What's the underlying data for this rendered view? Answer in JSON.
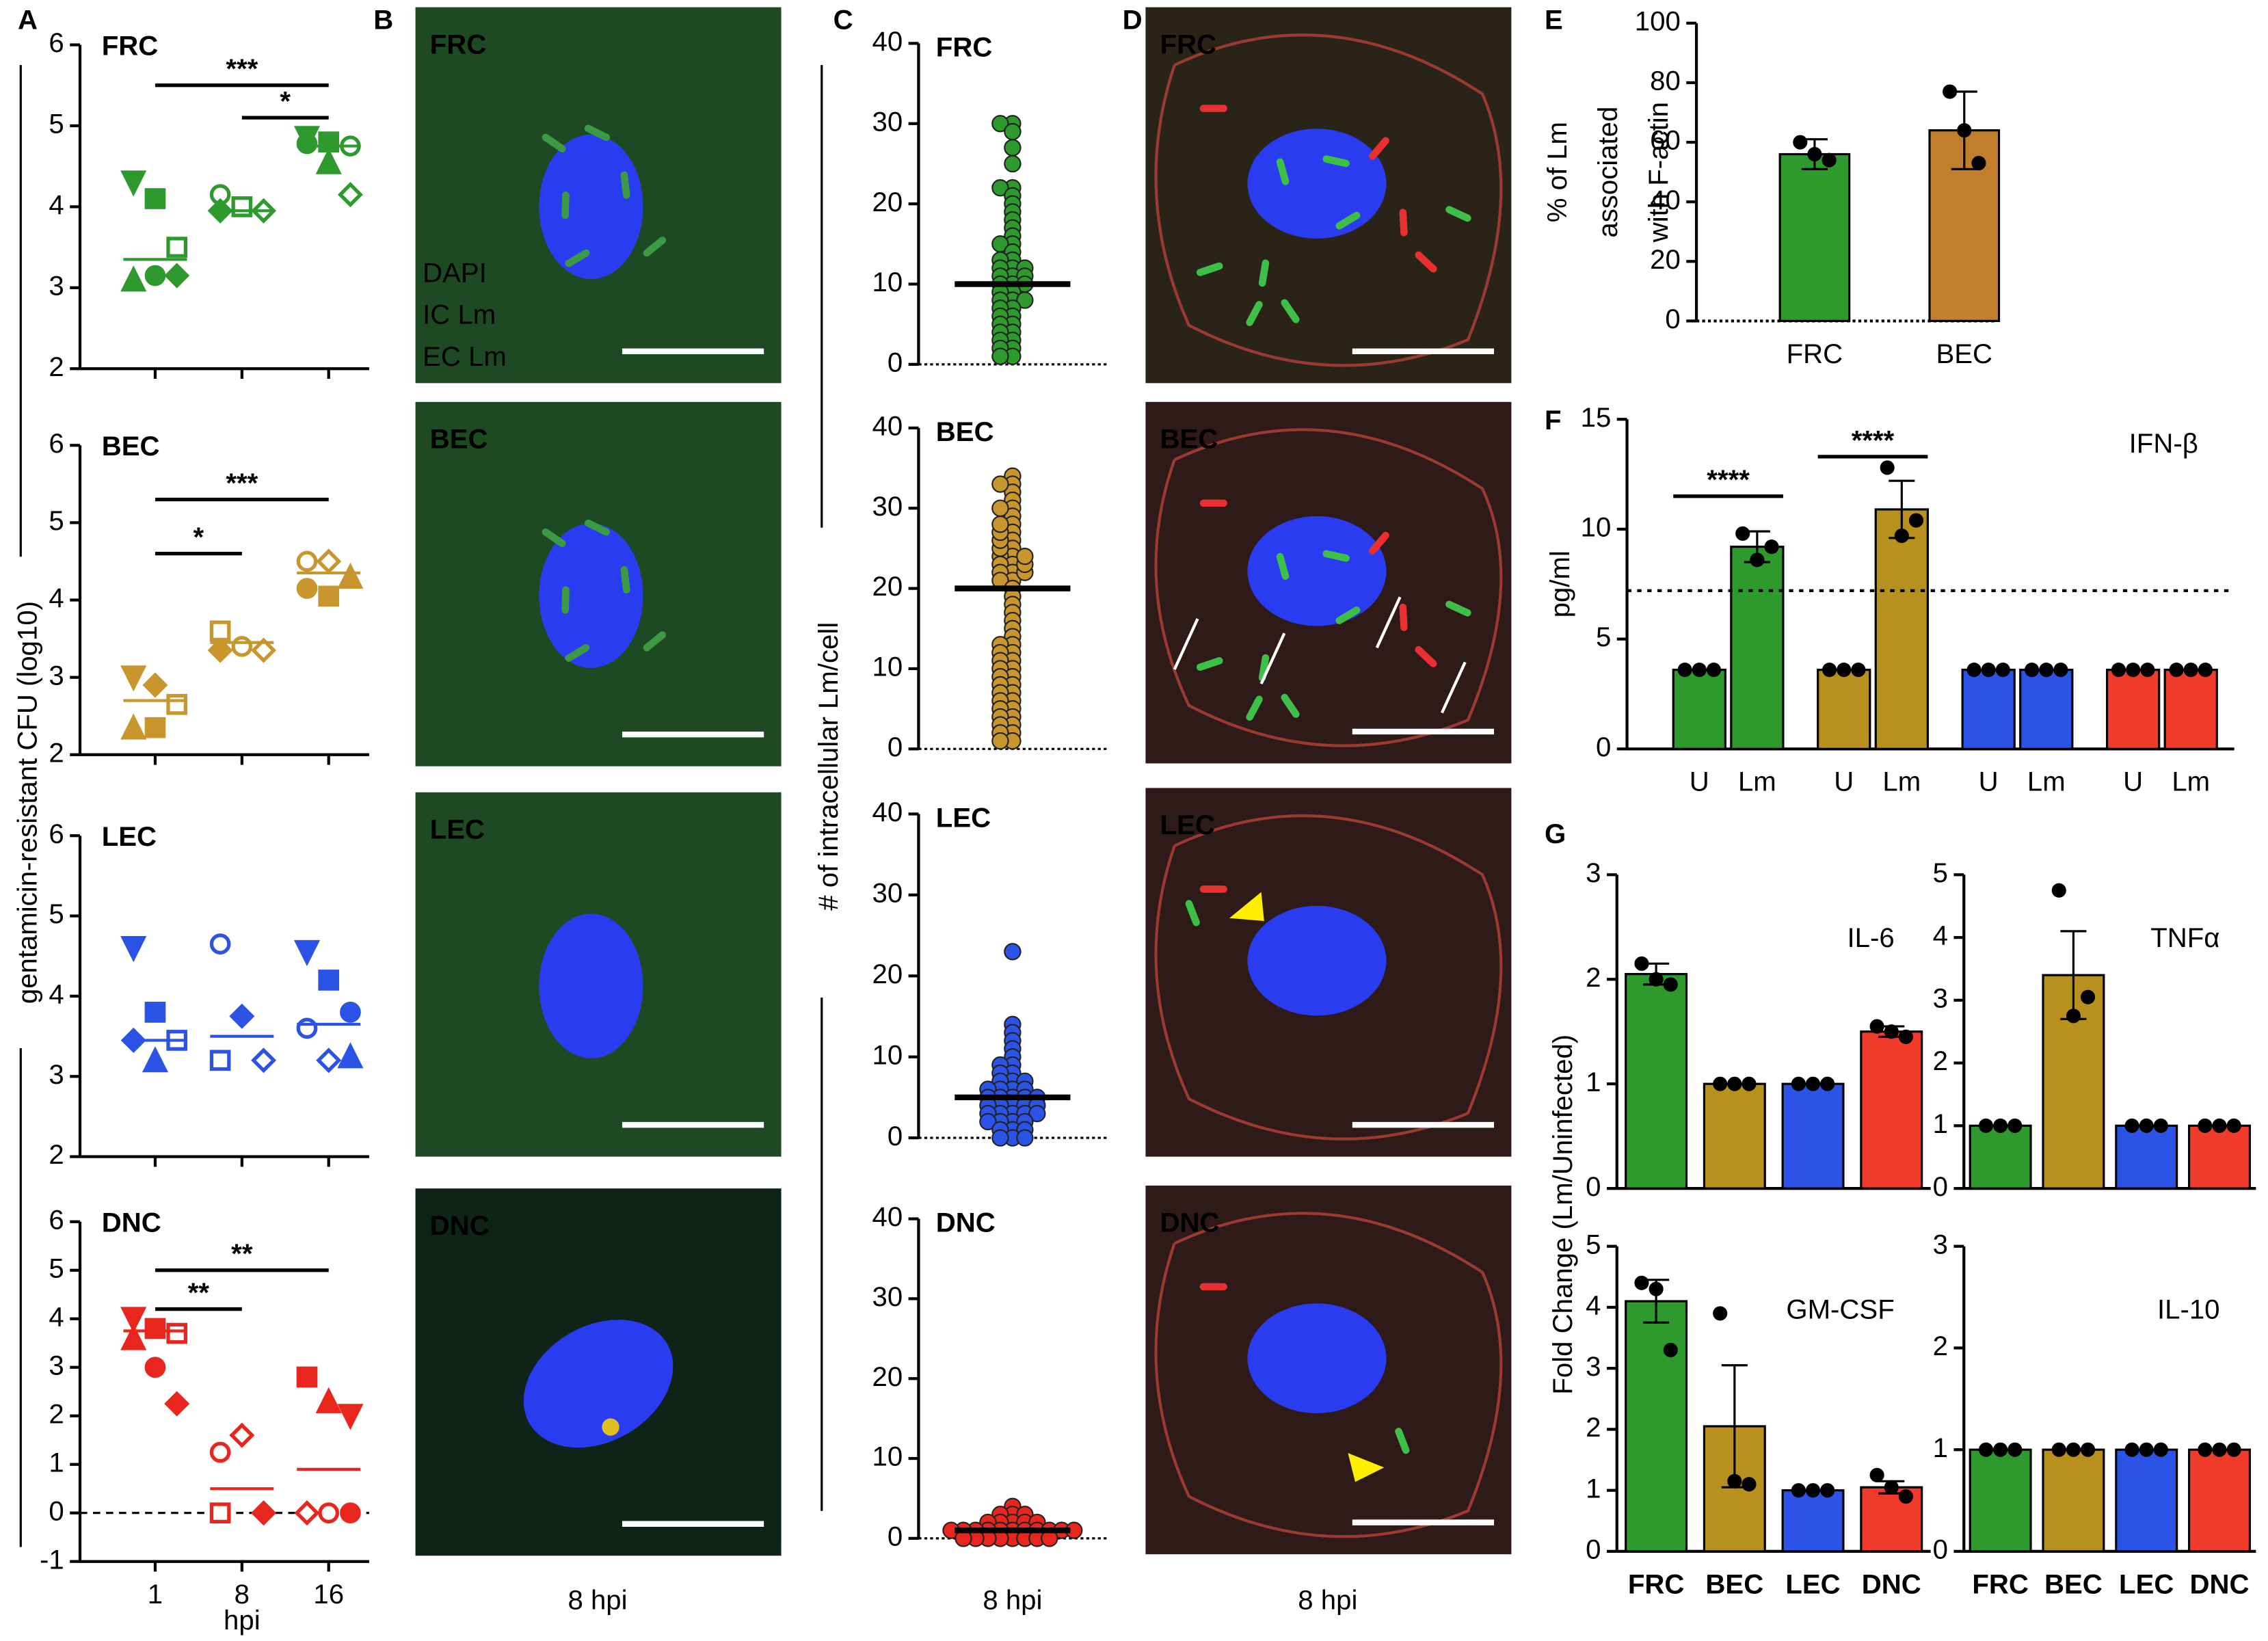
{
  "panel_labels": [
    "A",
    "B",
    "C",
    "D",
    "E",
    "F",
    "G"
  ],
  "shared": {
    "a_ylabel": "gentamicin-resistant CFU (log10)",
    "a_xlabel": "hpi",
    "c_ylabel": "# of intracellular Lm/cell",
    "c_caption": "8 hpi",
    "g_ylabel": "Fold Change (Lm/Uninfected)"
  },
  "micrographs": {
    "B": {
      "labels": [
        "FRC",
        "BEC",
        "LEC",
        "DNC"
      ],
      "stain_legend": [
        "DAPI",
        "IC Lm",
        "EC Lm"
      ],
      "stain_colors": [
        "#2a4cff",
        "#2fb84a",
        "#e0201a"
      ],
      "caption": "8 hpi"
    },
    "D": {
      "labels": [
        "FRC",
        "BEC",
        "LEC",
        "DNC"
      ],
      "caption": "8 hpi"
    }
  },
  "chart_data": [
    {
      "type": "dot",
      "title": "FRC",
      "color": "#2e9a2e",
      "ylim": [
        2,
        6
      ],
      "yticks": [
        2,
        3,
        4,
        5,
        6
      ],
      "points": [
        [
          4.3,
          4.1,
          3.5,
          3.1,
          3.15,
          3.15
        ],
        [
          4.15,
          4.0,
          3.95,
          3.95
        ],
        [
          4.85,
          4.8,
          4.75,
          4.78,
          4.55,
          4.15
        ]
      ],
      "markers": [
        [
          "v",
          "s",
          "S",
          "u",
          "o",
          "d"
        ],
        [
          "O",
          "S",
          "D",
          "d"
        ],
        [
          "v",
          "s",
          "O",
          "o",
          "u",
          "D"
        ]
      ],
      "medians": [
        3.35,
        3.95,
        4.75
      ],
      "annotations": [
        {
          "text": "***",
          "from": 0,
          "to": 2,
          "y": 5.5
        },
        {
          "text": "*",
          "from": 1,
          "to": 2,
          "y": 5.1
        }
      ]
    },
    {
      "type": "dot",
      "title": "BEC",
      "color": "#c8962d",
      "ylim": [
        2,
        6
      ],
      "yticks": [
        2,
        3,
        4,
        5,
        6
      ],
      "points": [
        [
          3.0,
          2.9,
          2.65,
          2.35,
          2.35
        ],
        [
          3.6,
          3.4,
          3.35,
          3.35
        ],
        [
          4.5,
          4.5,
          4.3,
          4.15,
          4.05
        ]
      ],
      "markers": [
        [
          "v",
          "d",
          "S",
          "u",
          "s"
        ],
        [
          "S",
          "O",
          "D",
          "d"
        ],
        [
          "O",
          "D",
          "u",
          "o",
          "s"
        ]
      ],
      "medians": [
        2.7,
        3.45,
        4.35
      ],
      "annotations": [
        {
          "text": "***",
          "from": 0,
          "to": 2,
          "y": 5.3
        },
        {
          "text": "*",
          "from": 0,
          "to": 1,
          "y": 4.6
        }
      ]
    },
    {
      "type": "dot",
      "title": "LEC",
      "color": "#2b54e6",
      "ylim": [
        2,
        6
      ],
      "yticks": [
        2,
        3,
        4,
        5,
        6
      ],
      "points": [
        [
          4.6,
          3.8,
          3.45,
          3.45,
          3.2
        ],
        [
          4.65,
          3.75,
          3.2,
          3.2
        ],
        [
          4.55,
          4.2,
          3.8,
          3.6,
          3.2,
          3.25
        ]
      ],
      "markers": [
        [
          "v",
          "s",
          "S",
          "d",
          "u"
        ],
        [
          "O",
          "d",
          "D",
          "S"
        ],
        [
          "v",
          "s",
          "o",
          "O",
          "D",
          "u"
        ]
      ],
      "medians": [
        3.45,
        3.5,
        3.65
      ]
    },
    {
      "type": "dot",
      "title": "DNC",
      "color": "#e8261e",
      "ylim": [
        -1,
        6
      ],
      "yticks": [
        -1,
        0,
        1,
        2,
        3,
        4,
        5,
        6
      ],
      "categories": [
        "1",
        "8",
        "16"
      ],
      "points": [
        [
          4.0,
          3.8,
          3.7,
          3.6,
          3.0,
          2.25
        ],
        [
          1.25,
          1.6,
          0,
          0
        ],
        [
          2.8,
          2.3,
          2.0,
          0,
          0,
          0
        ]
      ],
      "markers": [
        [
          "v",
          "s",
          "S",
          "u",
          "o",
          "d"
        ],
        [
          "O",
          "D",
          "d",
          "S"
        ],
        [
          "s",
          "u",
          "v",
          "D",
          "O",
          "o"
        ]
      ],
      "medians": [
        3.75,
        0.5,
        0.9
      ],
      "reference_line": 0,
      "annotations": [
        {
          "text": "**",
          "from": 0,
          "to": 1,
          "y": 4.2
        },
        {
          "text": "**",
          "from": 0,
          "to": 2,
          "y": 5.0
        }
      ]
    },
    {
      "type": "swarm",
      "title": "FRC",
      "color": "#2e9a2e",
      "ylim": [
        0,
        40
      ],
      "yticks": [
        0,
        10,
        20,
        30,
        40
      ],
      "mean": 10,
      "values": [
        30,
        30,
        29,
        27,
        25,
        22,
        22,
        21,
        20,
        19,
        18,
        17,
        16,
        15,
        15,
        14,
        13,
        13,
        12,
        12,
        12,
        11,
        11,
        11,
        10,
        10,
        10,
        9,
        9,
        8,
        8,
        8,
        7,
        7,
        6,
        6,
        5,
        5,
        4,
        4,
        3,
        3,
        2,
        2,
        1,
        1
      ]
    },
    {
      "type": "swarm",
      "title": "BEC",
      "color": "#c8962d",
      "ylim": [
        0,
        40
      ],
      "yticks": [
        0,
        10,
        20,
        30,
        40
      ],
      "mean": 20,
      "values": [
        34,
        33,
        32,
        31,
        30,
        29,
        28,
        27,
        26,
        25,
        24,
        24,
        23,
        23,
        22,
        22,
        21,
        21,
        20,
        19,
        18,
        17,
        16,
        15,
        14,
        13,
        13,
        12,
        12,
        11,
        11,
        10,
        10,
        9,
        9,
        8,
        8,
        7,
        7,
        6,
        6,
        5,
        5,
        4,
        4,
        3,
        3,
        2,
        2,
        1,
        1,
        22,
        23,
        24,
        25,
        26,
        27,
        28,
        30,
        33
      ]
    },
    {
      "type": "swarm",
      "title": "LEC",
      "color": "#2b54e6",
      "ylim": [
        0,
        40
      ],
      "yticks": [
        0,
        10,
        20,
        30,
        40
      ],
      "mean": 5,
      "values": [
        23,
        14,
        13,
        12,
        11,
        10,
        9,
        9,
        8,
        8,
        7,
        7,
        7,
        6,
        6,
        6,
        6,
        5,
        5,
        5,
        5,
        5,
        4,
        4,
        4,
        4,
        4,
        3,
        3,
        3,
        3,
        3,
        2,
        2,
        2,
        2,
        1,
        1,
        1,
        0,
        0,
        0
      ]
    },
    {
      "type": "swarm",
      "title": "DNC",
      "color": "#e8261e",
      "ylim": [
        0,
        40
      ],
      "yticks": [
        0,
        10,
        20,
        30,
        40
      ],
      "mean": 1,
      "values": [
        4,
        3,
        3,
        3,
        2,
        2,
        2,
        2,
        2,
        1,
        1,
        1,
        1,
        1,
        1,
        1,
        1,
        1,
        1,
        1,
        0,
        0,
        0,
        0,
        0,
        0,
        0,
        0
      ]
    },
    {
      "type": "bar",
      "ylabel": [
        "% of Lm",
        "associated",
        "with F-actin"
      ],
      "ylim": [
        0,
        100
      ],
      "yticks": [
        0,
        20,
        40,
        60,
        80,
        100
      ],
      "categories": [
        "FRC",
        "BEC"
      ],
      "values": [
        56,
        64
      ],
      "errors": [
        5,
        13
      ],
      "colors": [
        "#2e9a2e",
        "#c17f2e"
      ],
      "points": [
        [
          60,
          56,
          54
        ],
        [
          77,
          64,
          53
        ]
      ]
    },
    {
      "type": "bar",
      "title": "IFN-β",
      "ylabel": [
        "pg/ml"
      ],
      "ylim": [
        0,
        15
      ],
      "yticks": [
        0,
        5,
        10,
        15
      ],
      "threshold": 7.2,
      "categories": [
        "U",
        "Lm",
        "U",
        "Lm",
        "U",
        "Lm",
        "U",
        "Lm"
      ],
      "values": [
        3.6,
        9.2,
        3.6,
        10.9,
        3.6,
        3.6,
        3.6,
        3.6
      ],
      "errors": [
        0,
        0.7,
        0,
        1.3,
        0,
        0,
        0,
        0
      ],
      "colors": [
        "#2e9a2e",
        "#2e9a2e",
        "#b8901e",
        "#b8901e",
        "#2b54e6",
        "#2b54e6",
        "#f03a2a",
        "#f03a2a"
      ],
      "points": [
        [
          3.6,
          3.6,
          3.6
        ],
        [
          9.8,
          8.6,
          9.2
        ],
        [
          3.6,
          3.6,
          3.6
        ],
        [
          12.8,
          9.7,
          10.4
        ],
        [
          3.6,
          3.6,
          3.6
        ],
        [
          3.6,
          3.6,
          3.6
        ],
        [
          3.6,
          3.6,
          3.6
        ],
        [
          3.6,
          3.6,
          3.6
        ]
      ],
      "annotations": [
        {
          "text": "****",
          "from": 0,
          "to": 1,
          "y": 11.5
        },
        {
          "text": "****",
          "from": 2,
          "to": 3,
          "y": 13.3
        }
      ]
    },
    {
      "type": "bar",
      "title": "IL-6",
      "ylim": [
        0,
        3
      ],
      "yticks": [
        0,
        1,
        2,
        3
      ],
      "values": [
        2.05,
        1,
        1,
        1.5
      ],
      "errors": [
        0.1,
        0,
        0,
        0.05
      ],
      "colors": [
        "#2e9a2e",
        "#b8901e",
        "#2b54e6",
        "#f03a2a"
      ],
      "points": [
        [
          2.15,
          2.0,
          1.95
        ],
        [
          1,
          1,
          1
        ],
        [
          1,
          1,
          1
        ],
        [
          1.55,
          1.5,
          1.45
        ]
      ]
    },
    {
      "type": "bar",
      "title": "TNFα",
      "ylim": [
        0,
        5
      ],
      "yticks": [
        0,
        1,
        2,
        3,
        4,
        5
      ],
      "values": [
        1,
        3.4,
        1,
        1
      ],
      "errors": [
        0,
        0.7,
        0,
        0
      ],
      "colors": [
        "#2e9a2e",
        "#b8901e",
        "#2b54e6",
        "#f03a2a"
      ],
      "points": [
        [
          1,
          1,
          1
        ],
        [
          4.75,
          2.75,
          3.05
        ],
        [
          1,
          1,
          1
        ],
        [
          1,
          1,
          1
        ]
      ]
    },
    {
      "type": "bar",
      "title": "GM-CSF",
      "ylim": [
        0,
        5
      ],
      "yticks": [
        0,
        1,
        2,
        3,
        4,
        5
      ],
      "categories": [
        "FRC",
        "BEC",
        "LEC",
        "DNC"
      ],
      "label_color_by_bar": true,
      "values": [
        4.1,
        2.05,
        1,
        1.05
      ],
      "errors": [
        0.35,
        1.0,
        0,
        0.1
      ],
      "colors": [
        "#2e9a2e",
        "#b8901e",
        "#2b54e6",
        "#f03a2a"
      ],
      "points": [
        [
          4.4,
          4.3,
          3.3
        ],
        [
          3.9,
          1.15,
          1.1
        ],
        [
          1,
          1,
          1
        ],
        [
          1.25,
          1.05,
          0.9
        ]
      ]
    },
    {
      "type": "bar",
      "title": "IL-10",
      "ylim": [
        0,
        3
      ],
      "yticks": [
        0,
        1,
        2,
        3
      ],
      "categories": [
        "FRC",
        "BEC",
        "LEC",
        "DNC"
      ],
      "label_color_by_bar": true,
      "values": [
        1,
        1,
        1,
        1
      ],
      "errors": [
        0,
        0,
        0,
        0
      ],
      "colors": [
        "#2e9a2e",
        "#b8901e",
        "#2b54e6",
        "#f03a2a"
      ],
      "points": [
        [
          1,
          1,
          1
        ],
        [
          1,
          1,
          1
        ],
        [
          1,
          1,
          1
        ],
        [
          1,
          1,
          1
        ]
      ]
    }
  ]
}
